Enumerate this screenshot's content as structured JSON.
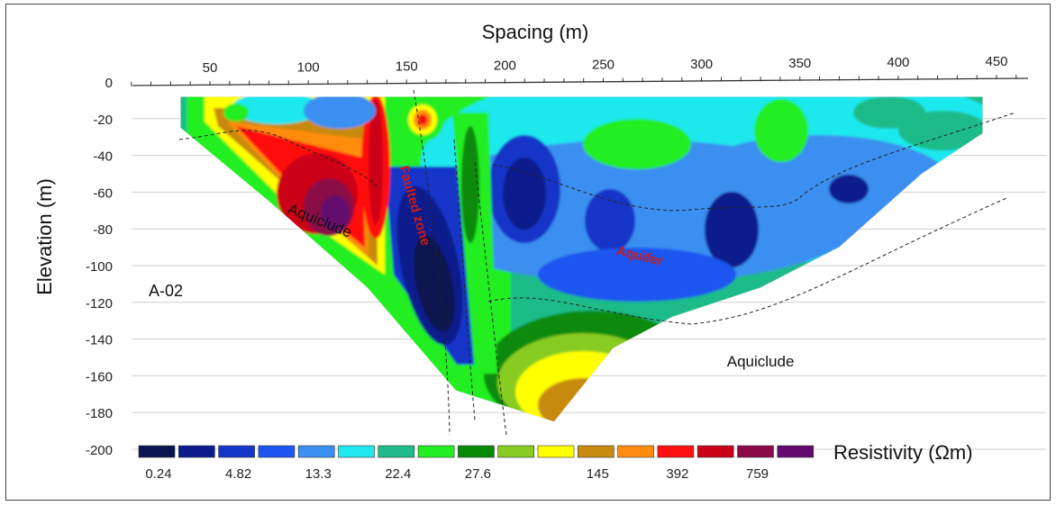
{
  "chart_data": {
    "type": "heatmap",
    "title": "",
    "xlabel": "Spacing (m)",
    "ylabel": "Elevation (m)",
    "xlim": [
      0,
      460
    ],
    "ylim": [
      -200,
      0
    ],
    "x_ticks": [
      50,
      100,
      150,
      200,
      250,
      300,
      350,
      400,
      450
    ],
    "y_ticks": [
      0,
      -20,
      -40,
      -60,
      -80,
      -100,
      -120,
      -140,
      -160,
      -180,
      -200
    ],
    "grid": "horizontal",
    "profile_label": "A-02",
    "annotations": [
      {
        "text": "Aquiclude",
        "x": 105,
        "y": -78
      },
      {
        "text": "Faulted zone",
        "x": 152,
        "y": -68
      },
      {
        "text": "Aquifer",
        "x": 268,
        "y": -97
      },
      {
        "text": "Aquiclude",
        "x": 330,
        "y": -155
      }
    ],
    "colorbar": {
      "title": "Resistivity (Ωm)",
      "colors": [
        "#0a1450",
        "#0d1c8c",
        "#1535c8",
        "#1e55f0",
        "#3a8ff0",
        "#1fe8ee",
        "#1fbb88",
        "#22ee22",
        "#078a07",
        "#88cc22",
        "#ffff00",
        "#c88a10",
        "#ff8c10",
        "#ff1010",
        "#cc0018",
        "#8a0a45",
        "#640a6e"
      ],
      "tick_labels": [
        "0.24",
        "4.82",
        "13.3",
        "22.4",
        "27.6",
        "145",
        "392",
        "759"
      ]
    },
    "section_outline": [
      [
        35,
        -8
      ],
      [
        443,
        -8
      ],
      [
        443,
        -28
      ],
      [
        412,
        -50
      ],
      [
        370,
        -90
      ],
      [
        330,
        -112
      ],
      [
        285,
        -128
      ],
      [
        255,
        -145
      ],
      [
        225,
        -185
      ],
      [
        175,
        -168
      ],
      [
        130,
        -112
      ],
      [
        80,
        -65
      ],
      [
        35,
        -25
      ]
    ]
  }
}
